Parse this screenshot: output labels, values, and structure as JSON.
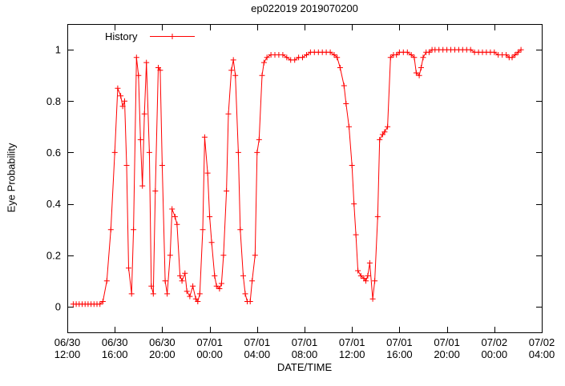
{
  "page": {
    "background": "#ffffff"
  },
  "chart_data": {
    "type": "line",
    "title": "ep022019 2019070200",
    "xlabel": "DATE/TIME",
    "ylabel": "Eye Probability",
    "grid": false,
    "legend_position": "top-left-inside",
    "ylim": [
      -0.1,
      1.1
    ],
    "y_ticks": [
      "0",
      "0.2",
      "0.4",
      "0.6",
      "0.8",
      "1"
    ],
    "x_tick_labels": [
      {
        "date": "06/30",
        "time": "12:00"
      },
      {
        "date": "06/30",
        "time": "16:00"
      },
      {
        "date": "06/30",
        "time": "20:00"
      },
      {
        "date": "07/01",
        "time": "00:00"
      },
      {
        "date": "07/01",
        "time": "04:00"
      },
      {
        "date": "07/01",
        "time": "08:00"
      },
      {
        "date": "07/01",
        "time": "12:00"
      },
      {
        "date": "07/01",
        "time": "16:00"
      },
      {
        "date": "07/01",
        "time": "20:00"
      },
      {
        "date": "07/02",
        "time": "00:00"
      },
      {
        "date": "07/02",
        "time": "04:00"
      }
    ],
    "series": [
      {
        "name": "History",
        "color": "#ff0000",
        "marker": "plus",
        "points": [
          [
            "06/30 12:30",
            0.01
          ],
          [
            "06/30 12:45",
            0.01
          ],
          [
            "06/30 13:00",
            0.01
          ],
          [
            "06/30 13:15",
            0.01
          ],
          [
            "06/30 13:30",
            0.01
          ],
          [
            "06/30 13:45",
            0.01
          ],
          [
            "06/30 14:00",
            0.01
          ],
          [
            "06/30 14:15",
            0.01
          ],
          [
            "06/30 14:30",
            0.01
          ],
          [
            "06/30 14:45",
            0.01
          ],
          [
            "06/30 15:00",
            0.02
          ],
          [
            "06/30 15:20",
            0.1
          ],
          [
            "06/30 15:40",
            0.3
          ],
          [
            "06/30 16:00",
            0.6
          ],
          [
            "06/30 16:15",
            0.85
          ],
          [
            "06/30 16:30",
            0.82
          ],
          [
            "06/30 16:40",
            0.78
          ],
          [
            "06/30 16:50",
            0.8
          ],
          [
            "06/30 17:00",
            0.55
          ],
          [
            "06/30 17:10",
            0.15
          ],
          [
            "06/30 17:25",
            0.05
          ],
          [
            "06/30 17:35",
            0.3
          ],
          [
            "06/30 17:50",
            0.97
          ],
          [
            "06/30 18:00",
            0.9
          ],
          [
            "06/30 18:10",
            0.65
          ],
          [
            "06/30 18:20",
            0.47
          ],
          [
            "06/30 18:30",
            0.75
          ],
          [
            "06/30 18:40",
            0.95
          ],
          [
            "06/30 18:55",
            0.6
          ],
          [
            "06/30 19:05",
            0.08
          ],
          [
            "06/30 19:15",
            0.05
          ],
          [
            "06/30 19:25",
            0.45
          ],
          [
            "06/30 19:40",
            0.93
          ],
          [
            "06/30 19:50",
            0.92
          ],
          [
            "06/30 20:00",
            0.55
          ],
          [
            "06/30 20:15",
            0.1
          ],
          [
            "06/30 20:25",
            0.05
          ],
          [
            "06/30 20:40",
            0.2
          ],
          [
            "06/30 20:50",
            0.38
          ],
          [
            "06/30 21:05",
            0.35
          ],
          [
            "06/30 21:15",
            0.32
          ],
          [
            "06/30 21:30",
            0.12
          ],
          [
            "06/30 21:40",
            0.1
          ],
          [
            "06/30 21:55",
            0.13
          ],
          [
            "06/30 22:05",
            0.06
          ],
          [
            "06/30 22:20",
            0.04
          ],
          [
            "06/30 22:35",
            0.08
          ],
          [
            "06/30 22:50",
            0.03
          ],
          [
            "06/30 23:00",
            0.02
          ],
          [
            "06/30 23:10",
            0.05
          ],
          [
            "06/30 23:25",
            0.3
          ],
          [
            "06/30 23:35",
            0.66
          ],
          [
            "06/30 23:50",
            0.52
          ],
          [
            "07/01 00:00",
            0.35
          ],
          [
            "07/01 00:10",
            0.25
          ],
          [
            "07/01 00:25",
            0.12
          ],
          [
            "07/01 00:35",
            0.08
          ],
          [
            "07/01 00:50",
            0.07
          ],
          [
            "07/01 01:00",
            0.09
          ],
          [
            "07/01 01:10",
            0.2
          ],
          [
            "07/01 01:25",
            0.45
          ],
          [
            "07/01 01:35",
            0.75
          ],
          [
            "07/01 01:50",
            0.92
          ],
          [
            "07/01 02:00",
            0.96
          ],
          [
            "07/01 02:10",
            0.9
          ],
          [
            "07/01 02:25",
            0.6
          ],
          [
            "07/01 02:35",
            0.3
          ],
          [
            "07/01 02:50",
            0.12
          ],
          [
            "07/01 03:00",
            0.05
          ],
          [
            "07/01 03:10",
            0.02
          ],
          [
            "07/01 03:25",
            0.02
          ],
          [
            "07/01 03:35",
            0.1
          ],
          [
            "07/01 03:50",
            0.2
          ],
          [
            "07/01 04:00",
            0.6
          ],
          [
            "07/01 04:10",
            0.65
          ],
          [
            "07/01 04:25",
            0.9
          ],
          [
            "07/01 04:35",
            0.95
          ],
          [
            "07/01 04:50",
            0.97
          ],
          [
            "07/01 05:10",
            0.98
          ],
          [
            "07/01 05:30",
            0.98
          ],
          [
            "07/01 05:50",
            0.98
          ],
          [
            "07/01 06:10",
            0.98
          ],
          [
            "07/01 06:30",
            0.97
          ],
          [
            "07/01 06:50",
            0.96
          ],
          [
            "07/01 07:10",
            0.96
          ],
          [
            "07/01 07:30",
            0.97
          ],
          [
            "07/01 07:50",
            0.97
          ],
          [
            "07/01 08:10",
            0.98
          ],
          [
            "07/01 08:30",
            0.99
          ],
          [
            "07/01 08:50",
            0.99
          ],
          [
            "07/01 09:10",
            0.99
          ],
          [
            "07/01 09:30",
            0.99
          ],
          [
            "07/01 09:50",
            0.99
          ],
          [
            "07/01 10:10",
            0.99
          ],
          [
            "07/01 10:30",
            0.98
          ],
          [
            "07/01 10:45",
            0.97
          ],
          [
            "07/01 11:00",
            0.93
          ],
          [
            "07/01 11:20",
            0.86
          ],
          [
            "07/01 11:30",
            0.79
          ],
          [
            "07/01 11:45",
            0.7
          ],
          [
            "07/01 12:00",
            0.55
          ],
          [
            "07/01 12:10",
            0.4
          ],
          [
            "07/01 12:20",
            0.28
          ],
          [
            "07/01 12:30",
            0.14
          ],
          [
            "07/01 12:45",
            0.12
          ],
          [
            "07/01 13:00",
            0.11
          ],
          [
            "07/01 13:10",
            0.1
          ],
          [
            "07/01 13:20",
            0.12
          ],
          [
            "07/01 13:30",
            0.17
          ],
          [
            "07/01 13:45",
            0.03
          ],
          [
            "07/01 13:55",
            0.1
          ],
          [
            "07/01 14:10",
            0.35
          ],
          [
            "07/01 14:20",
            0.65
          ],
          [
            "07/01 14:35",
            0.67
          ],
          [
            "07/01 14:45",
            0.68
          ],
          [
            "07/01 15:00",
            0.7
          ],
          [
            "07/01 15:15",
            0.97
          ],
          [
            "07/01 15:30",
            0.98
          ],
          [
            "07/01 15:45",
            0.98
          ],
          [
            "07/01 16:00",
            0.99
          ],
          [
            "07/01 16:20",
            0.99
          ],
          [
            "07/01 16:40",
            0.99
          ],
          [
            "07/01 17:00",
            0.98
          ],
          [
            "07/01 17:15",
            0.97
          ],
          [
            "07/01 17:25",
            0.91
          ],
          [
            "07/01 17:40",
            0.9
          ],
          [
            "07/01 17:50",
            0.93
          ],
          [
            "07/01 18:00",
            0.97
          ],
          [
            "07/01 18:15",
            0.99
          ],
          [
            "07/01 18:30",
            0.99
          ],
          [
            "07/01 18:45",
            1.0
          ],
          [
            "07/01 19:00",
            1.0
          ],
          [
            "07/01 19:20",
            1.0
          ],
          [
            "07/01 19:40",
            1.0
          ],
          [
            "07/01 20:00",
            1.0
          ],
          [
            "07/01 20:20",
            1.0
          ],
          [
            "07/01 20:40",
            1.0
          ],
          [
            "07/01 21:00",
            1.0
          ],
          [
            "07/01 21:20",
            1.0
          ],
          [
            "07/01 21:40",
            1.0
          ],
          [
            "07/01 22:00",
            1.0
          ],
          [
            "07/01 22:20",
            0.99
          ],
          [
            "07/01 22:40",
            0.99
          ],
          [
            "07/01 23:00",
            0.99
          ],
          [
            "07/01 23:20",
            0.99
          ],
          [
            "07/01 23:40",
            0.99
          ],
          [
            "07/02 00:00",
            0.99
          ],
          [
            "07/02 00:20",
            0.98
          ],
          [
            "07/02 00:40",
            0.98
          ],
          [
            "07/02 01:00",
            0.98
          ],
          [
            "07/02 01:15",
            0.97
          ],
          [
            "07/02 01:30",
            0.97
          ],
          [
            "07/02 01:45",
            0.98
          ],
          [
            "07/02 02:00",
            0.99
          ],
          [
            "07/02 02:15",
            1.0
          ]
        ]
      }
    ]
  }
}
